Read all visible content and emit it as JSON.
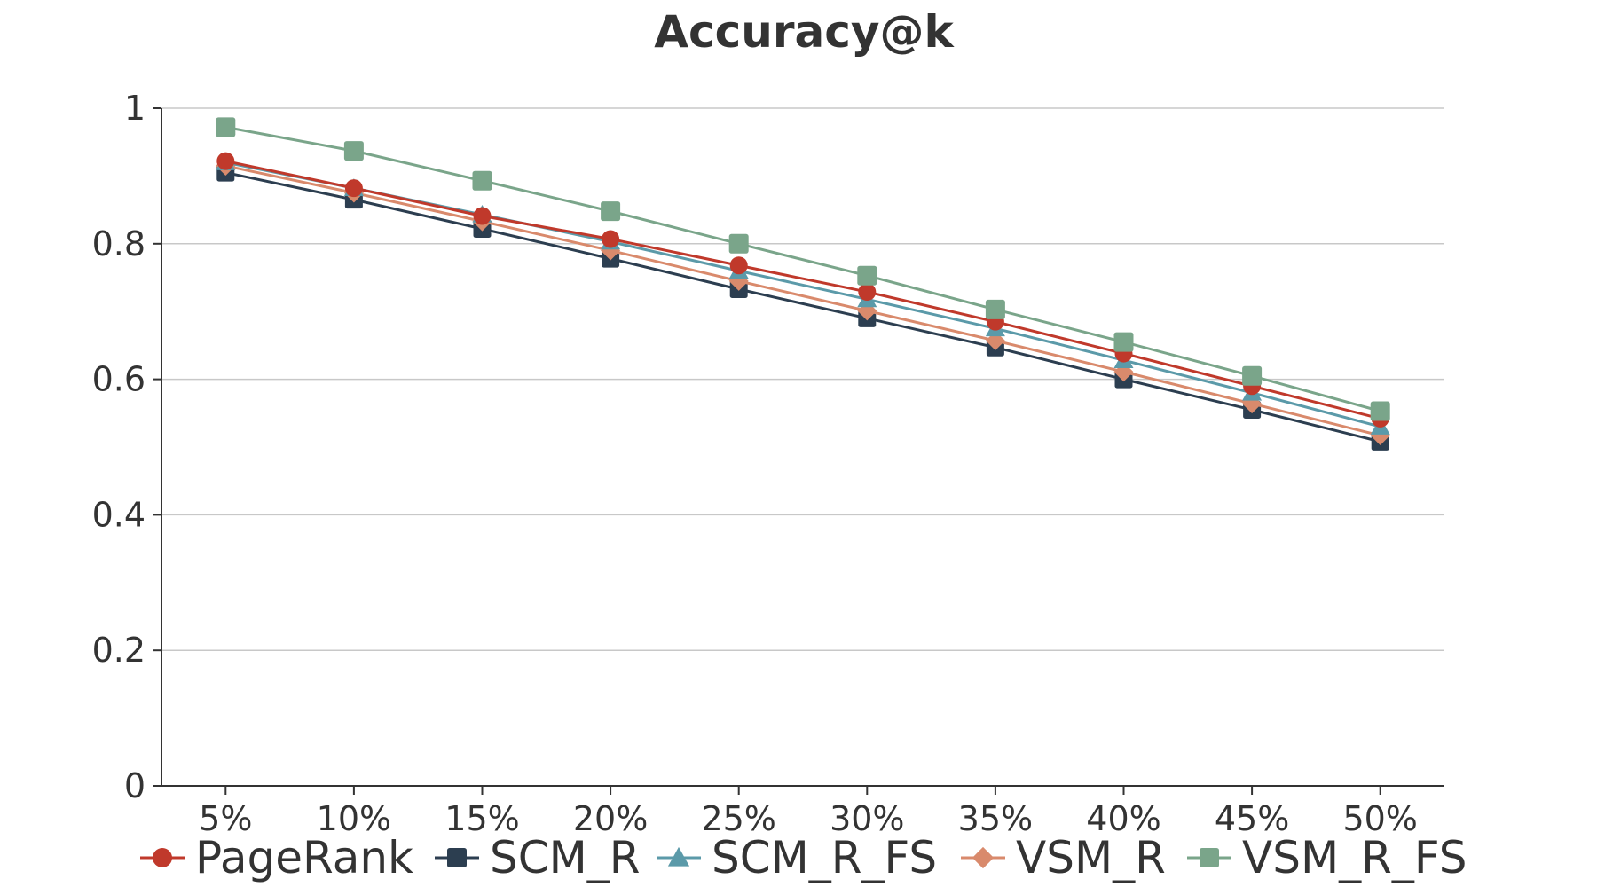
{
  "chart_data": {
    "type": "line",
    "title": "Accuracy@k",
    "xlabel": "",
    "ylabel": "",
    "categories": [
      "5%",
      "10%",
      "15%",
      "20%",
      "25%",
      "30%",
      "35%",
      "40%",
      "45%",
      "50%"
    ],
    "ylim": [
      0,
      1
    ],
    "yticks": [
      0,
      0.2,
      0.4,
      0.6,
      0.8,
      1
    ],
    "ytick_labels": [
      "0",
      "0.2",
      "0.4",
      "0.6",
      "0.8",
      "1"
    ],
    "grid": true,
    "legend_position": "bottom",
    "series": [
      {
        "name": "PageRank",
        "color": "#c0392b",
        "marker": "circle",
        "values": [
          0.922,
          0.882,
          0.841,
          0.807,
          0.768,
          0.729,
          0.685,
          0.638,
          0.59,
          0.542
        ]
      },
      {
        "name": "SCM_R",
        "color": "#2c3e50",
        "marker": "square",
        "values": [
          0.905,
          0.865,
          0.822,
          0.778,
          0.733,
          0.69,
          0.647,
          0.6,
          0.555,
          0.508
        ]
      },
      {
        "name": "SCM_R_FS",
        "color": "#5b9aa9",
        "marker": "triangle",
        "values": [
          0.92,
          0.882,
          0.843,
          0.803,
          0.76,
          0.718,
          0.675,
          0.628,
          0.58,
          0.53
        ]
      },
      {
        "name": "VSM_R",
        "color": "#d98a6c",
        "marker": "diamond",
        "values": [
          0.915,
          0.875,
          0.833,
          0.79,
          0.745,
          0.701,
          0.657,
          0.611,
          0.564,
          0.517
        ]
      },
      {
        "name": "VSM_R_FS",
        "color": "#7aa58a",
        "marker": "square",
        "values": [
          0.972,
          0.937,
          0.893,
          0.848,
          0.8,
          0.753,
          0.703,
          0.655,
          0.605,
          0.553
        ]
      }
    ]
  }
}
